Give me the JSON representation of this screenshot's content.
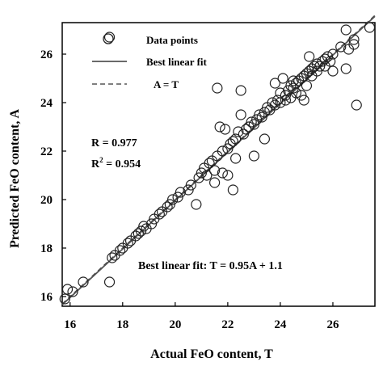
{
  "chart_data": {
    "type": "scatter",
    "xlabel": "Actual FeO content, T",
    "ylabel": "Predicted FeO content, A",
    "xlim": [
      15.7,
      27.6
    ],
    "ylim": [
      15.6,
      27.3
    ],
    "xticks": [
      16,
      18,
      20,
      22,
      24,
      26
    ],
    "yticks": [
      16,
      18,
      20,
      22,
      24,
      26
    ],
    "grid": false,
    "legend_position": "top-left",
    "legend": [
      {
        "label": "Data points",
        "style": "marker-circle"
      },
      {
        "label": "Best linear fit",
        "style": "solid-line"
      },
      {
        "label": "A = T",
        "style": "dashed-line"
      }
    ],
    "stats": {
      "r": "R = 0.977",
      "r2_prefix": "R",
      "r2_sup": "2",
      "r2_value": " = 0.954"
    },
    "fit_annotation": "Best linear fit: T = 0.95A + 1.1",
    "fit_line": {
      "slope": 1.0,
      "intercept": -0.04
    },
    "identity_line": {
      "slope": 1.0,
      "intercept": 0.0
    },
    "series": [
      {
        "name": "Data points",
        "points": [
          [
            15.8,
            15.9
          ],
          [
            15.9,
            16.3
          ],
          [
            16.1,
            16.2
          ],
          [
            16.5,
            16.6
          ],
          [
            17.5,
            16.6
          ],
          [
            17.5,
            26.7
          ],
          [
            17.6,
            17.6
          ],
          [
            17.7,
            17.7
          ],
          [
            17.9,
            17.9
          ],
          [
            18.0,
            18.0
          ],
          [
            18.2,
            18.2
          ],
          [
            18.3,
            18.3
          ],
          [
            18.5,
            18.5
          ],
          [
            18.6,
            18.6
          ],
          [
            18.7,
            18.7
          ],
          [
            18.8,
            18.9
          ],
          [
            18.9,
            18.8
          ],
          [
            19.1,
            19.0
          ],
          [
            19.2,
            19.2
          ],
          [
            19.4,
            19.4
          ],
          [
            19.5,
            19.5
          ],
          [
            19.7,
            19.7
          ],
          [
            19.8,
            19.8
          ],
          [
            19.9,
            20.0
          ],
          [
            20.1,
            20.1
          ],
          [
            20.2,
            20.3
          ],
          [
            20.5,
            20.4
          ],
          [
            20.6,
            20.6
          ],
          [
            20.8,
            19.8
          ],
          [
            20.9,
            20.9
          ],
          [
            21.0,
            21.1
          ],
          [
            21.1,
            21.3
          ],
          [
            21.2,
            21.0
          ],
          [
            21.3,
            21.5
          ],
          [
            21.4,
            21.6
          ],
          [
            21.5,
            20.7
          ],
          [
            21.5,
            21.2
          ],
          [
            21.6,
            24.6
          ],
          [
            21.6,
            21.8
          ],
          [
            21.7,
            23.0
          ],
          [
            21.8,
            22.0
          ],
          [
            21.8,
            21.1
          ],
          [
            21.9,
            22.9
          ],
          [
            22.0,
            22.1
          ],
          [
            22.0,
            21.0
          ],
          [
            22.1,
            22.3
          ],
          [
            22.2,
            22.4
          ],
          [
            22.2,
            20.4
          ],
          [
            22.3,
            21.7
          ],
          [
            22.3,
            22.5
          ],
          [
            22.4,
            22.8
          ],
          [
            22.5,
            24.5
          ],
          [
            22.5,
            23.5
          ],
          [
            22.6,
            22.7
          ],
          [
            22.7,
            22.9
          ],
          [
            22.8,
            23.0
          ],
          [
            22.9,
            23.2
          ],
          [
            23.0,
            23.1
          ],
          [
            23.0,
            21.8
          ],
          [
            23.1,
            23.3
          ],
          [
            23.2,
            23.5
          ],
          [
            23.3,
            23.4
          ],
          [
            23.4,
            22.5
          ],
          [
            23.4,
            23.6
          ],
          [
            23.5,
            23.8
          ],
          [
            23.6,
            23.7
          ],
          [
            23.7,
            24.0
          ],
          [
            23.8,
            24.8
          ],
          [
            23.8,
            23.9
          ],
          [
            23.9,
            24.1
          ],
          [
            24.0,
            24.0
          ],
          [
            24.0,
            24.4
          ],
          [
            24.1,
            25.0
          ],
          [
            24.2,
            24.3
          ],
          [
            24.2,
            24.1
          ],
          [
            24.3,
            24.5
          ],
          [
            24.4,
            24.2
          ],
          [
            24.4,
            24.7
          ],
          [
            24.5,
            24.6
          ],
          [
            24.5,
            24.9
          ],
          [
            24.6,
            24.8
          ],
          [
            24.6,
            24.4
          ],
          [
            24.7,
            24.9
          ],
          [
            24.8,
            25.0
          ],
          [
            24.8,
            24.3
          ],
          [
            24.9,
            24.1
          ],
          [
            24.9,
            25.1
          ],
          [
            25.0,
            25.2
          ],
          [
            25.0,
            24.7
          ],
          [
            25.1,
            25.3
          ],
          [
            25.1,
            25.9
          ],
          [
            25.2,
            25.4
          ],
          [
            25.2,
            25.1
          ],
          [
            25.3,
            25.5
          ],
          [
            25.4,
            25.6
          ],
          [
            25.4,
            25.3
          ],
          [
            25.5,
            25.5
          ],
          [
            25.6,
            25.7
          ],
          [
            25.7,
            25.8
          ],
          [
            25.7,
            25.5
          ],
          [
            25.8,
            25.9
          ],
          [
            25.9,
            25.7
          ],
          [
            26.0,
            26.0
          ],
          [
            26.0,
            25.3
          ],
          [
            26.3,
            26.3
          ],
          [
            26.5,
            25.4
          ],
          [
            26.5,
            27.0
          ],
          [
            26.6,
            26.2
          ],
          [
            26.8,
            26.6
          ],
          [
            26.8,
            26.4
          ],
          [
            26.9,
            23.9
          ],
          [
            27.4,
            27.1
          ]
        ]
      }
    ]
  }
}
